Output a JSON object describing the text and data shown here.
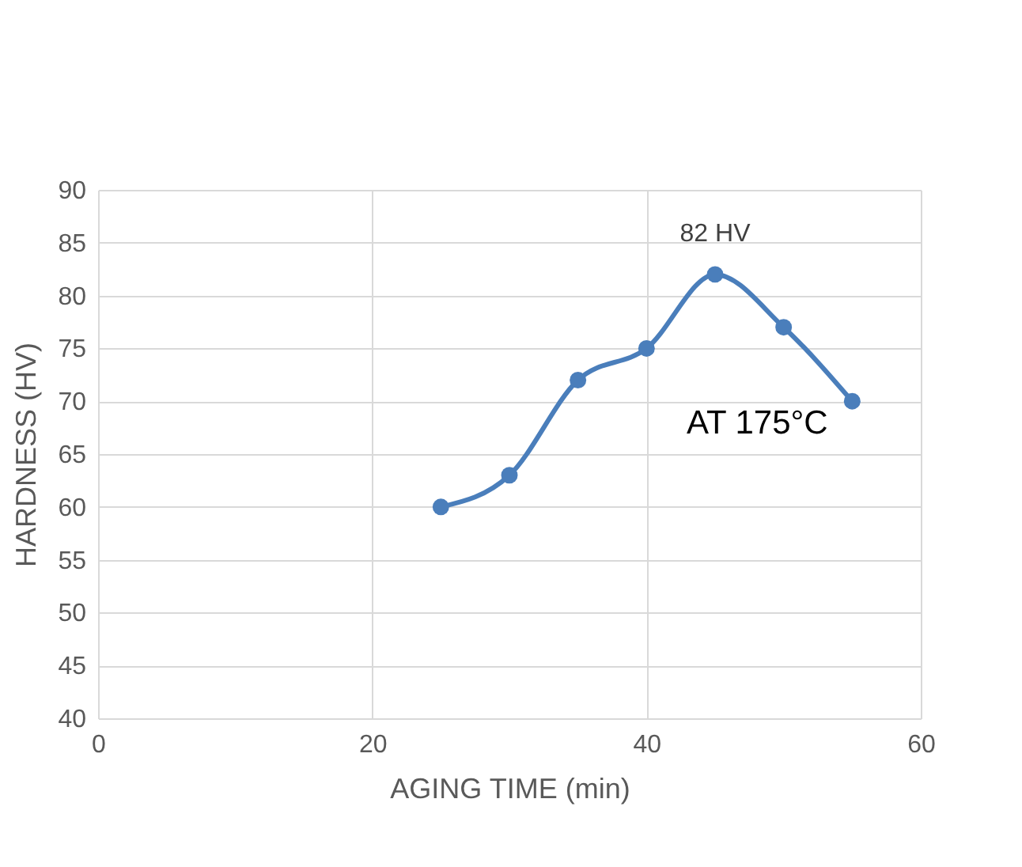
{
  "chart_data": {
    "type": "line",
    "xlabel": "AGING TIME (min)",
    "ylabel": "HARDNESS (HV)",
    "x": [
      25,
      30,
      35,
      40,
      45,
      50,
      55
    ],
    "series": [
      {
        "color": "#4a7ebb",
        "values": [
          60,
          63,
          72,
          75,
          82,
          77,
          70
        ]
      }
    ],
    "xlim": [
      0,
      60
    ],
    "xticks": [
      0,
      20,
      40,
      60
    ],
    "ylim": [
      40,
      90
    ],
    "yticks": [
      40,
      45,
      50,
      55,
      60,
      65,
      70,
      75,
      80,
      85,
      90
    ],
    "grid": true,
    "marker": "circle",
    "line_style": "solid",
    "annotations": [
      {
        "text": "82 HV",
        "x": 45,
        "y": 82
      },
      "AT  175°C"
    ]
  }
}
